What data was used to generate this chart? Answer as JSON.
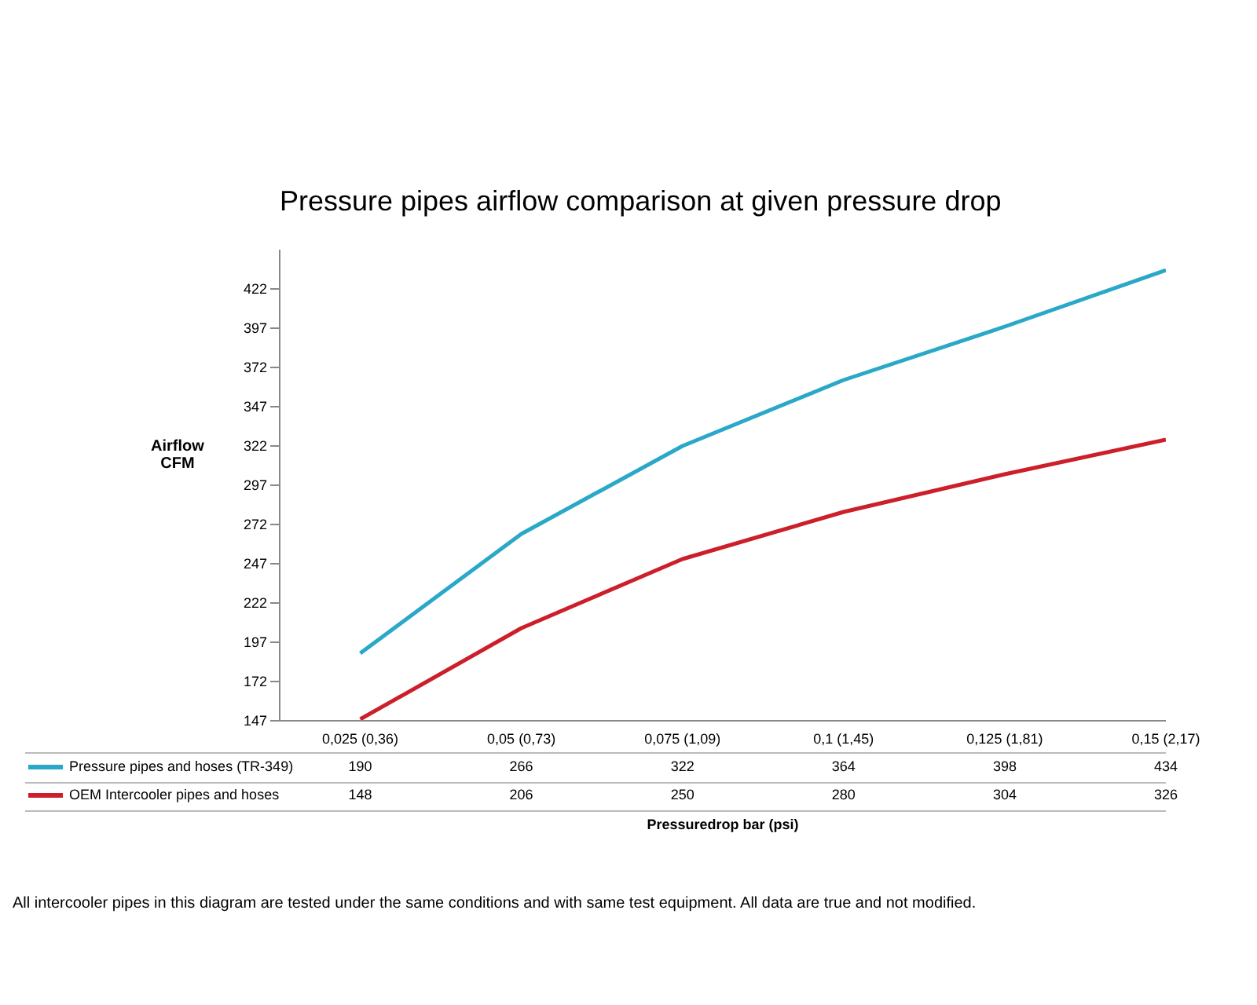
{
  "chart_data": {
    "type": "line",
    "title": "Pressure pipes airflow comparison at given pressure drop",
    "xlabel": "Pressuredrop bar (psi)",
    "ylabel": "Airflow\nCFM",
    "categories": [
      "0,025 (0,36)",
      "0,05 (0,73)",
      "0,075 (1,09)",
      "0,1 (1,45)",
      "0,125 (1,81)",
      "0,15 (2,17)"
    ],
    "series": [
      {
        "name": "Pressure pipes and hoses (TR-349)",
        "color": "#2aa8c8",
        "values": [
          190,
          266,
          322,
          364,
          398,
          434
        ]
      },
      {
        "name": "OEM Intercooler pipes and hoses",
        "color": "#cc1f2a",
        "values": [
          148,
          206,
          250,
          280,
          304,
          326
        ]
      }
    ],
    "ylim": [
      147,
      447
    ],
    "yticks": [
      147,
      172,
      197,
      222,
      247,
      272,
      297,
      322,
      347,
      372,
      397,
      422
    ],
    "grid": false,
    "legend": "bottom",
    "marker": "none",
    "line_style": "solid",
    "data_labels": true,
    "annotations": [
      "All intercooler pipes in this diagram are tested under the same conditions and with same test equipment. All data are true and not modified."
    ]
  }
}
